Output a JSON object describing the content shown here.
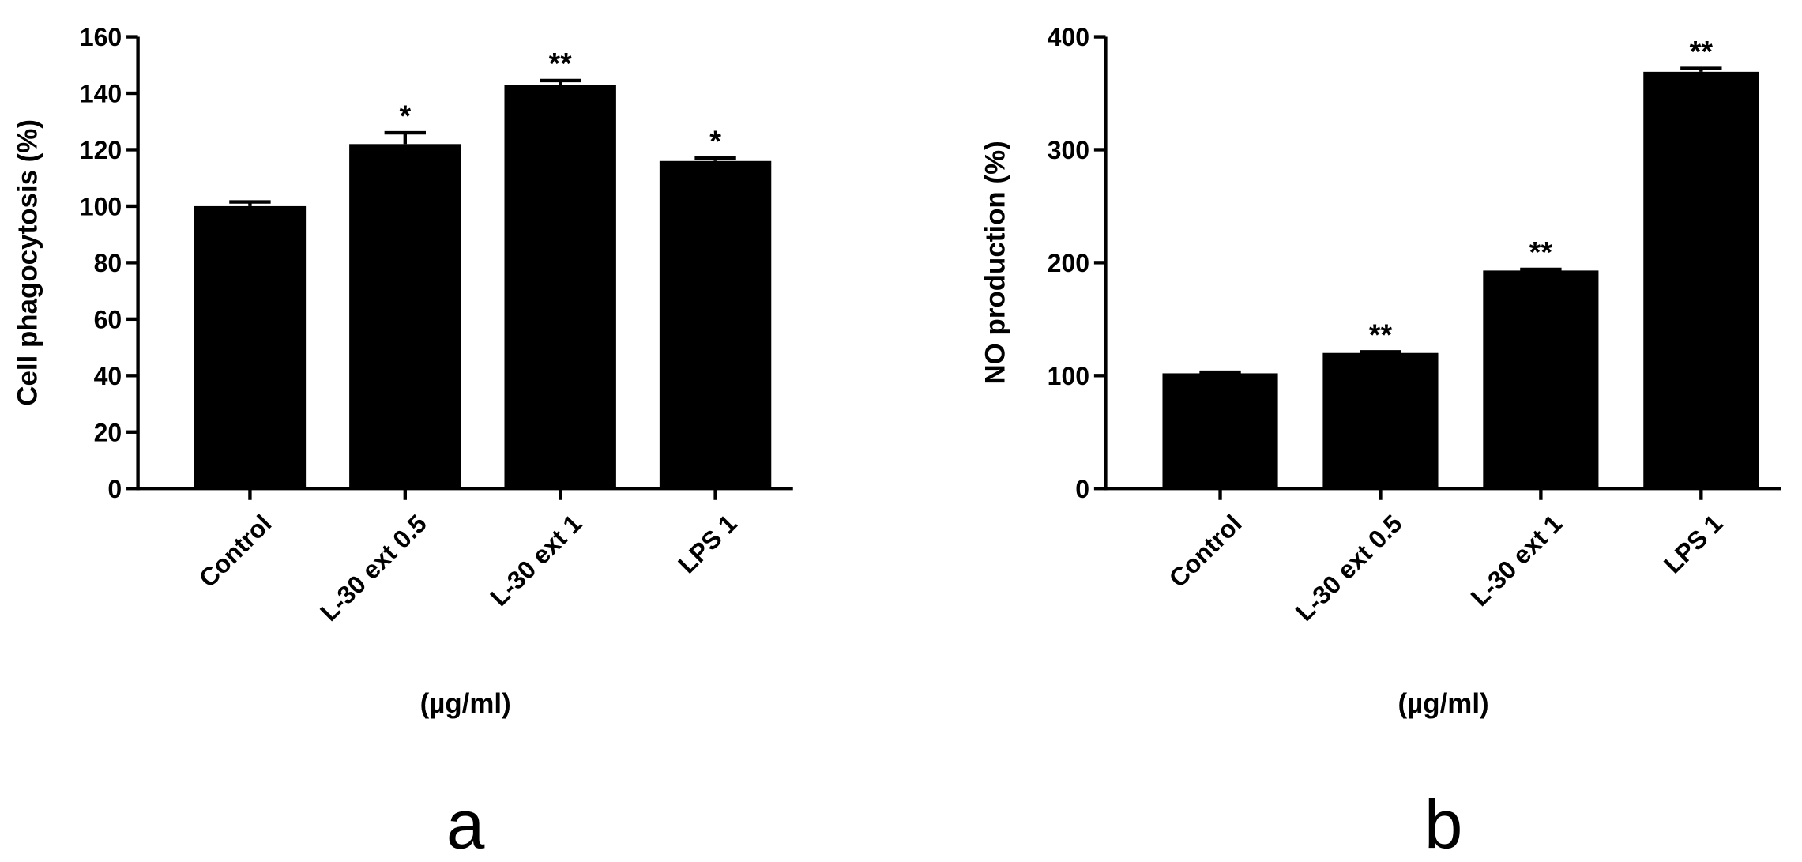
{
  "chart_data": [
    {
      "type": "bar",
      "panel": "a",
      "y_label": "Cell phagocytosis (%)",
      "x_label": "(µg/ml)",
      "categories": [
        "Control",
        "L-30 ext 0.5",
        "L-30 ext 1",
        "LPS 1"
      ],
      "values": [
        100,
        122,
        143,
        116
      ],
      "errors": [
        1.5,
        4,
        1.5,
        1
      ],
      "annotations": [
        null,
        "*",
        "**",
        "*"
      ],
      "color": "#000000",
      "ylim": [
        0,
        160
      ],
      "yticks": [
        0,
        20,
        40,
        60,
        80,
        100,
        120,
        140,
        160
      ]
    },
    {
      "type": "bar",
      "panel": "b",
      "y_label": "NO production (%)",
      "x_label": "(µg/ml)",
      "categories": [
        "Control",
        "L-30 ext 0.5",
        "L-30 ext 1",
        "LPS 1"
      ],
      "values": [
        102,
        120,
        193,
        369
      ],
      "errors": [
        1,
        1,
        1,
        3
      ],
      "annotations": [
        null,
        "**",
        "**",
        "**"
      ],
      "color": "#000000",
      "ylim": [
        0,
        400
      ],
      "yticks": [
        0,
        100,
        200,
        300,
        400
      ]
    }
  ]
}
